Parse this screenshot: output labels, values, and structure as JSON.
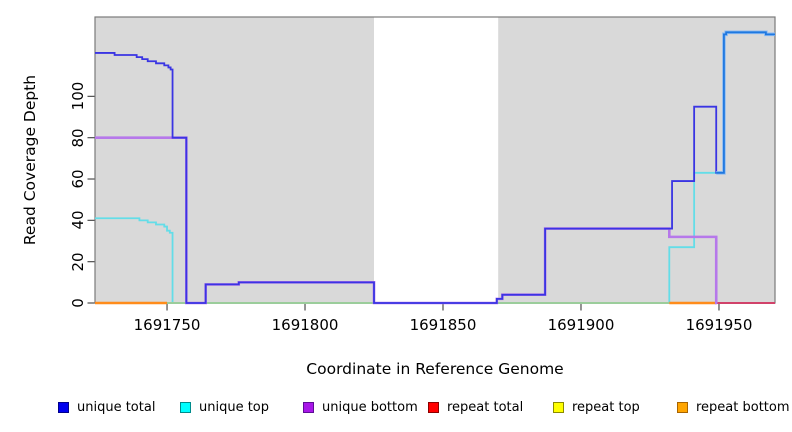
{
  "chart_data": {
    "type": "line",
    "subtype": "step-coverage",
    "title": "",
    "xlabel": "Coordinate in Reference Genome",
    "ylabel": "Read Coverage Depth",
    "xlim": [
      1691723.9,
      1691970.3
    ],
    "ylim": [
      0,
      138.4
    ],
    "x_ticks": [
      1691750,
      1691800,
      1691850,
      1691900,
      1691950
    ],
    "y_ticks": [
      0,
      20,
      40,
      60,
      80,
      100
    ],
    "grid": false,
    "legend_position": "bottom",
    "plot_bg_color": "#D9D9D9",
    "gap_band_x": [
      1691825,
      1691870
    ],
    "series": [
      {
        "name": "unique total",
        "color": "#0000EE",
        "steps": [
          [
            1691724,
            121
          ],
          [
            1691731,
            120
          ],
          [
            1691739,
            119
          ],
          [
            1691741,
            118
          ],
          [
            1691743,
            117
          ],
          [
            1691746,
            116
          ],
          [
            1691749,
            115
          ],
          [
            1691750.5,
            114
          ],
          [
            1691751.3,
            113
          ],
          [
            1691752,
            80
          ],
          [
            1691757,
            0
          ],
          [
            1691764,
            9
          ],
          [
            1691776,
            10
          ],
          [
            1691825,
            0
          ],
          [
            1691869.5,
            2
          ],
          [
            1691871.5,
            4
          ],
          [
            1691887,
            36
          ],
          [
            1691933,
            59
          ],
          [
            1691941,
            95
          ],
          [
            1691949,
            63
          ],
          [
            1691951.8,
            130
          ],
          [
            1691952.6,
            131
          ],
          [
            1691967,
            130
          ]
        ],
        "end_x": 1691970.3
      },
      {
        "name": "unique top",
        "color": "#00FFFF",
        "steps": [
          [
            1691724,
            41
          ],
          [
            1691740,
            40
          ],
          [
            1691743,
            39
          ],
          [
            1691746,
            38
          ],
          [
            1691749,
            37
          ],
          [
            1691750,
            35
          ],
          [
            1691751,
            34
          ],
          [
            1691752,
            0
          ],
          [
            1691932,
            27
          ],
          [
            1691941,
            63
          ],
          [
            1691951.8,
            130
          ],
          [
            1691952.6,
            131
          ],
          [
            1691967,
            130
          ]
        ],
        "end_x": 1691970.3
      },
      {
        "name": "unique bottom",
        "color": "#A020F0",
        "steps": [
          [
            1691724,
            80
          ],
          [
            1691757,
            0
          ],
          [
            1691764,
            9
          ],
          [
            1691776,
            10
          ],
          [
            1691825,
            0
          ],
          [
            1691869.5,
            2
          ],
          [
            1691871.5,
            4
          ],
          [
            1691887,
            36
          ],
          [
            1691932,
            32
          ],
          [
            1691949,
            0
          ]
        ],
        "end_x": 1691970.3
      },
      {
        "name": "repeat total",
        "color": "#FF0000",
        "steps": [
          [
            1691724,
            0
          ]
        ],
        "end_x": 1691970.3
      },
      {
        "name": "repeat top",
        "color": "#FFFF00",
        "steps": [
          [
            1691724,
            0
          ]
        ],
        "end_x": 1691970.3
      },
      {
        "name": "repeat bottom",
        "color": "#FFA500",
        "steps": [
          [
            1691724,
            0
          ]
        ],
        "end_x": 1691970.3
      }
    ],
    "render_lines": [
      {
        "name": "unique-top-line",
        "color": "#63DDE8",
        "width": 1.8,
        "points": [
          [
            1691723.9,
            41
          ],
          [
            1691740,
            40
          ],
          [
            1691743,
            39
          ],
          [
            1691746,
            38
          ],
          [
            1691749,
            37
          ],
          [
            1691750,
            35
          ],
          [
            1691751,
            34
          ],
          [
            1691752,
            0
          ],
          [
            1691932,
            27
          ],
          [
            1691941,
            63
          ]
        ],
        "end_x": 1691949
      },
      {
        "name": "zero-line-green",
        "color": "#9BCD9B",
        "width": 2,
        "points": [
          [
            1691750,
            0
          ]
        ],
        "end_x": 1691932
      },
      {
        "name": "zero-line-orange-left",
        "color": "#FF8C1A",
        "width": 2.4,
        "points": [
          [
            1691723.9,
            0
          ]
        ],
        "end_x": 1691750
      },
      {
        "name": "zero-line-orange-right",
        "color": "#FF8C1A",
        "width": 2.4,
        "points": [
          [
            1691932,
            0
          ]
        ],
        "end_x": 1691949
      },
      {
        "name": "zero-line-crimson",
        "color": "#D1426A",
        "width": 2,
        "points": [
          [
            1691949,
            0
          ]
        ],
        "end_x": 1691970.3
      },
      {
        "name": "unique-bottom-line",
        "color": "#B678EA",
        "width": 2.6,
        "points": [
          [
            1691723.9,
            80
          ],
          [
            1691757,
            0
          ],
          [
            1691764,
            9
          ],
          [
            1691776,
            10
          ],
          [
            1691825,
            0
          ],
          [
            1691869.5,
            2
          ],
          [
            1691871.5,
            4
          ],
          [
            1691887,
            36
          ],
          [
            1691932,
            32
          ],
          [
            1691949,
            0
          ]
        ],
        "end_x": 1691949.4
      },
      {
        "name": "unique-total-line",
        "color": "#3A35E3",
        "width": 1.8,
        "points": [
          [
            1691723.9,
            121
          ],
          [
            1691731,
            120
          ],
          [
            1691739,
            119
          ],
          [
            1691741,
            118
          ],
          [
            1691743,
            117
          ],
          [
            1691746,
            116
          ],
          [
            1691749,
            115
          ],
          [
            1691750.5,
            114
          ],
          [
            1691751.3,
            113
          ],
          [
            1691752,
            80
          ],
          [
            1691757,
            0
          ],
          [
            1691764,
            9
          ],
          [
            1691776,
            10
          ],
          [
            1691825,
            0
          ],
          [
            1691869.5,
            2
          ],
          [
            1691871.5,
            4
          ],
          [
            1691887,
            36
          ],
          [
            1691933,
            59
          ],
          [
            1691941,
            95
          ],
          [
            1691949,
            63
          ]
        ],
        "end_x": 1691949.4
      },
      {
        "name": "total-top-overlap-halo",
        "color": "#8FBCF2",
        "width": 3.6,
        "points": [
          [
            1691949,
            63
          ],
          [
            1691951.8,
            130
          ],
          [
            1691952.6,
            131
          ],
          [
            1691967,
            130
          ]
        ],
        "end_x": 1691970.3
      },
      {
        "name": "total-top-overlap-core",
        "color": "#1F78E0",
        "width": 1.8,
        "points": [
          [
            1691949,
            63
          ],
          [
            1691951.8,
            130
          ],
          [
            1691952.6,
            131
          ],
          [
            1691967,
            130
          ]
        ],
        "end_x": 1691970.3
      }
    ]
  },
  "legend": {
    "items": [
      {
        "label": "unique total",
        "fill": "#0000EE",
        "border": "#00008B"
      },
      {
        "label": "unique top",
        "fill": "#00FFFF",
        "border": "#008B8B"
      },
      {
        "label": "unique bottom",
        "fill": "#A817E8",
        "border": "#5E0D96"
      },
      {
        "label": "repeat total",
        "fill": "#FF0000",
        "border": "#8B0000"
      },
      {
        "label": "repeat top",
        "fill": "#FFFF00",
        "border": "#8B8B00"
      },
      {
        "label": "repeat bottom",
        "fill": "#FFA500",
        "border": "#A86400"
      }
    ]
  }
}
